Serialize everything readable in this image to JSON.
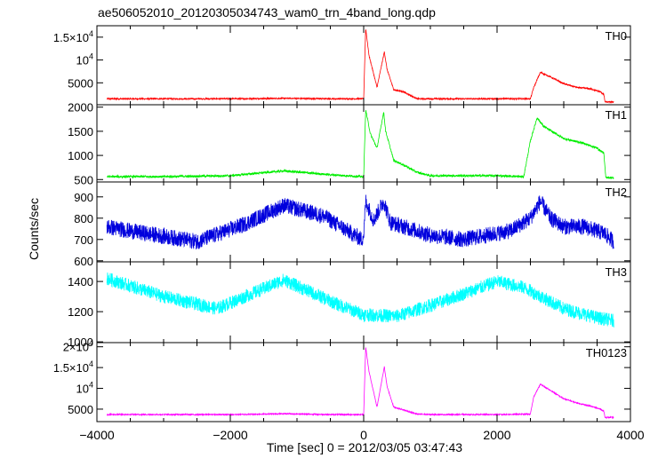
{
  "chart_data": {
    "type": "line",
    "title": "ae506052010_20120305034743_wam0_trn_4band_long.qdp",
    "xlabel": "Time [sec] 0 = 2012/03/05 03:47:43",
    "ylabel": "Counts/sec",
    "xlim": [
      -4000,
      4000
    ],
    "x_ticks": [
      -4000,
      -2000,
      0,
      2000,
      4000
    ],
    "x_tick_labels": [
      "−4000",
      "−2000",
      "0",
      "2000",
      "4000"
    ],
    "panels": [
      {
        "name": "TH0",
        "color": "#ff0000",
        "ylim": [
          200,
          17500
        ],
        "y_ticks": [
          5000,
          10000,
          15000
        ],
        "y_tick_labels": [
          "5000",
          "10^4",
          "1.5×10^4"
        ],
        "noise": 150,
        "x": [
          -3850,
          -3000,
          -2000,
          -1200,
          -500,
          -30,
          0,
          30,
          80,
          200,
          310,
          350,
          450,
          600,
          800,
          1000,
          2000,
          2500,
          2550,
          2650,
          2800,
          3000,
          3200,
          3400,
          3550,
          3600,
          3620,
          3750
        ],
        "values": [
          1500,
          1500,
          1500,
          1600,
          1500,
          1500,
          1500,
          17000,
          11000,
          4000,
          11800,
          8000,
          3500,
          3000,
          1500,
          1500,
          1500,
          1500,
          4000,
          7300,
          6300,
          4800,
          4000,
          3700,
          3000,
          2500,
          800,
          800
        ]
      },
      {
        "name": "TH1",
        "color": "#00ee00",
        "ylim": [
          450,
          2050
        ],
        "y_ticks": [
          500,
          1000,
          1500,
          2000
        ],
        "y_tick_labels": [
          "500",
          "1000",
          "1500",
          "2000"
        ],
        "noise": 22,
        "x": [
          -3850,
          -3000,
          -2000,
          -1200,
          -500,
          -30,
          0,
          30,
          100,
          200,
          300,
          330,
          450,
          600,
          800,
          1000,
          2000,
          2400,
          2500,
          2600,
          2700,
          3000,
          3300,
          3500,
          3600,
          3630,
          3750
        ],
        "values": [
          560,
          560,
          580,
          680,
          600,
          560,
          560,
          1950,
          1450,
          1150,
          1900,
          1500,
          900,
          800,
          650,
          580,
          580,
          560,
          1300,
          1780,
          1600,
          1350,
          1250,
          1150,
          1050,
          550,
          530
        ]
      },
      {
        "name": "TH2",
        "color": "#0000dd",
        "ylim": [
          595,
          970
        ],
        "y_ticks": [
          600,
          700,
          800,
          900
        ],
        "y_tick_labels": [
          "600",
          "700",
          "800",
          "900"
        ],
        "noise": 38,
        "x": [
          -3850,
          -3500,
          -2500,
          -1800,
          -1200,
          -600,
          -30,
          0,
          30,
          150,
          300,
          400,
          600,
          1000,
          1500,
          2200,
          2500,
          2650,
          2800,
          3000,
          3300,
          3600,
          3750
        ],
        "values": [
          760,
          740,
          690,
          770,
          860,
          810,
          700,
          720,
          880,
          790,
          880,
          780,
          760,
          720,
          700,
          740,
          800,
          880,
          800,
          760,
          760,
          730,
          690
        ]
      },
      {
        "name": "TH3",
        "color": "#00ffff",
        "ylim": [
          995,
          1530
        ],
        "y_ticks": [
          1000,
          1200,
          1400
        ],
        "y_tick_labels": [
          "1000",
          "1200",
          "1400"
        ],
        "noise": 45,
        "x": [
          -3850,
          -3000,
          -2200,
          -1200,
          -400,
          0,
          500,
          1200,
          2000,
          2400,
          3000,
          3500,
          3750
        ],
        "values": [
          1420,
          1300,
          1220,
          1410,
          1250,
          1180,
          1170,
          1270,
          1400,
          1360,
          1220,
          1160,
          1140
        ]
      },
      {
        "name": "TH0123",
        "color": "#ff00ff",
        "ylim": [
          2000,
          21000
        ],
        "y_ticks": [
          5000,
          10000,
          15000,
          20000
        ],
        "y_tick_labels": [
          "5000",
          "10^4",
          "1.5×10^4",
          "2×10^4"
        ],
        "noise": 140,
        "x": [
          -3850,
          -3000,
          -2000,
          -1200,
          -500,
          -30,
          0,
          30,
          80,
          200,
          310,
          350,
          450,
          600,
          800,
          1000,
          2000,
          2500,
          2550,
          2650,
          2800,
          3000,
          3200,
          3400,
          3550,
          3600,
          3620,
          3750
        ],
        "values": [
          3700,
          3700,
          3700,
          3900,
          3700,
          3700,
          3700,
          20000,
          14000,
          5500,
          15200,
          10500,
          5500,
          4800,
          3800,
          3700,
          3700,
          3800,
          8000,
          11000,
          9500,
          7500,
          6500,
          5700,
          5000,
          4500,
          3000,
          3000
        ]
      }
    ]
  }
}
